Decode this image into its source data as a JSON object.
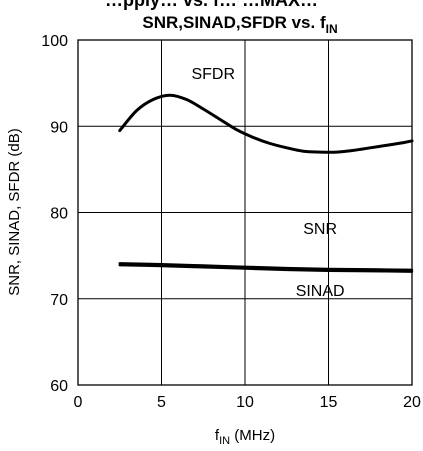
{
  "header": {
    "cut_line": "…pply… vs. f… …MAX…",
    "title_main": "SNR,SINAD,SFDR vs. f",
    "title_sub": "IN"
  },
  "chart_data": {
    "type": "line",
    "title": "SNR,SINAD,SFDR vs. fIN",
    "xlabel_main": "f",
    "xlabel_sub": "IN",
    "xlabel_unit": " (MHz)",
    "ylabel": "SNR, SINAD, SFDR (dB)",
    "xlim": [
      0,
      20
    ],
    "ylim": [
      60,
      100
    ],
    "xticks": [
      "0",
      "5",
      "10",
      "15",
      "20"
    ],
    "yticks": [
      "60",
      "70",
      "80",
      "90",
      "100"
    ],
    "grid": true,
    "colors": {
      "line": "#000000",
      "grid": "#000000",
      "background": "#ffffff"
    },
    "series": [
      {
        "name": "SFDR",
        "x": [
          2.5,
          3.5,
          4.5,
          5.5,
          6.5,
          7.5,
          8.5,
          9.5,
          10.5,
          11.5,
          12.5,
          13.5,
          14.5,
          15.5,
          16.5,
          17.5,
          18.5,
          19.5,
          20
        ],
        "y": [
          89.5,
          91.8,
          93.1,
          93.6,
          93.1,
          92.0,
          90.8,
          89.6,
          88.7,
          88.0,
          87.5,
          87.1,
          87.0,
          87.0,
          87.2,
          87.5,
          87.8,
          88.1,
          88.3
        ]
      },
      {
        "name": "SNR",
        "x": [
          2.5,
          5,
          7.5,
          10,
          12.5,
          15,
          17.5,
          20
        ],
        "y": [
          74.1,
          74.0,
          73.85,
          73.7,
          73.55,
          73.45,
          73.4,
          73.35
        ]
      },
      {
        "name": "SINAD",
        "x": [
          2.5,
          5,
          7.5,
          10,
          12.5,
          15,
          17.5,
          20
        ],
        "y": [
          73.9,
          73.8,
          73.65,
          73.5,
          73.35,
          73.25,
          73.2,
          73.15
        ]
      }
    ],
    "annotations": [
      {
        "text": "SFDR",
        "x": 8.1,
        "y": 95.5
      },
      {
        "text": "SNR",
        "x": 14.5,
        "y": 77.5
      },
      {
        "text": "SINAD",
        "x": 14.5,
        "y": 70.3
      }
    ]
  }
}
